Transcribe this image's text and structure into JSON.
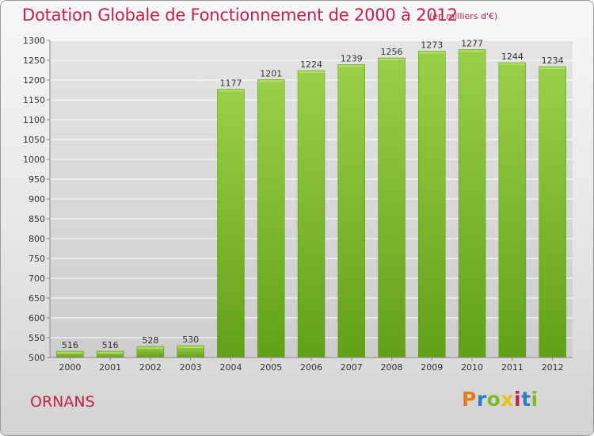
{
  "title": "Dotation Globale de Fonctionnement de 2000 à 2012",
  "subtitle": "(en milliers d'€)",
  "commune": "ORNANS",
  "logo": {
    "letters": [
      "P",
      "r",
      "o",
      "x",
      "i",
      "t",
      "i"
    ],
    "colors": [
      "#e87a16",
      "#2f7ec1",
      "#7fb829",
      "#e8c316",
      "#c8204a",
      "#2f7ec1",
      "#7fb829"
    ]
  },
  "colors": {
    "accent": "#c8204a",
    "bar_light": "#9ad048",
    "bar_dark": "#62a01a",
    "grid": "#ffffff"
  },
  "chart_data": {
    "type": "bar",
    "categories": [
      "2000",
      "2001",
      "2002",
      "2003",
      "2004",
      "2005",
      "2006",
      "2007",
      "2008",
      "2009",
      "2010",
      "2011",
      "2012"
    ],
    "values": [
      516,
      516,
      528,
      530,
      1177,
      1201,
      1224,
      1239,
      1256,
      1273,
      1277,
      1244,
      1234
    ],
    "ylim": [
      500,
      1300
    ],
    "yticks": [
      500,
      550,
      600,
      650,
      700,
      750,
      800,
      850,
      900,
      950,
      1000,
      1050,
      1100,
      1150,
      1200,
      1250,
      1300
    ],
    "grid": true,
    "data_labels": true
  }
}
